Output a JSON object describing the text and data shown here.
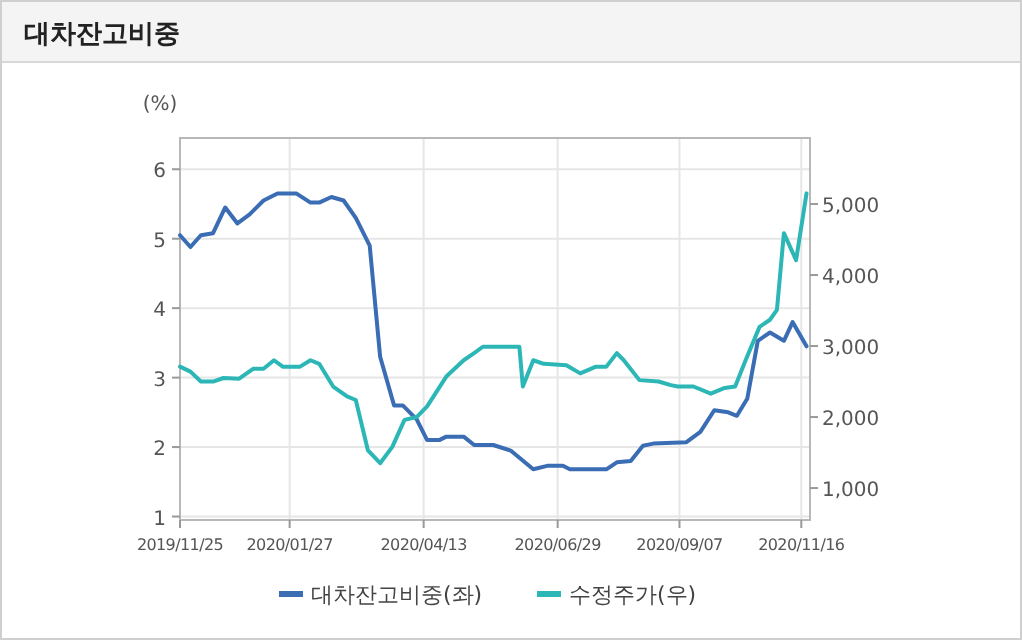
{
  "chart_data": {
    "type": "line",
    "title": "대차잔고비중",
    "ylabel": "(%)",
    "xlim": [
      "2019-11-25",
      "2020-11-21"
    ],
    "xticks": [
      {
        "value": "2019-11-25",
        "label": "2019/11/25"
      },
      {
        "value": "2020-01-27",
        "label": "2020/01/27"
      },
      {
        "value": "2020-04-13",
        "label": "2020/04/13"
      },
      {
        "value": "2020-06-29",
        "label": "2020/06/29"
      },
      {
        "value": "2020-09-07",
        "label": "2020/09/07"
      },
      {
        "value": "2020-11-16",
        "label": "2020/11/16"
      }
    ],
    "ylim": [
      0.95,
      6.45
    ],
    "yticks": [
      1,
      2,
      3,
      4,
      5,
      6
    ],
    "y2lim": [
      550,
      5930
    ],
    "y2ticks": [
      {
        "value": 1000,
        "label": "1,000"
      },
      {
        "value": 2000,
        "label": "2,000"
      },
      {
        "value": 3000,
        "label": "3,000"
      },
      {
        "value": 4000,
        "label": "4,000"
      },
      {
        "value": 5000,
        "label": "5,000"
      }
    ],
    "grid": true,
    "legend": "bottom",
    "marker": "none",
    "line_style": "solid",
    "series": [
      {
        "name": "대차잔고비중(좌)",
        "color": "#3a6db3",
        "x": [
          "2019-11-25",
          "2019-12-01",
          "2019-12-07",
          "2019-12-14",
          "2019-12-21",
          "2019-12-28",
          "2020-01-04",
          "2020-01-12",
          "2020-01-20",
          "2020-01-31",
          "2020-02-08",
          "2020-02-13",
          "2020-02-20",
          "2020-02-27",
          "2020-03-05",
          "2020-03-13",
          "2020-03-19",
          "2020-03-27",
          "2020-04-01",
          "2020-04-09",
          "2020-04-15",
          "2020-04-22",
          "2020-04-26",
          "2020-05-06",
          "2020-05-12",
          "2020-05-23",
          "2020-06-02",
          "2020-06-15",
          "2020-06-23",
          "2020-07-02",
          "2020-07-06",
          "2020-07-27",
          "2020-08-02",
          "2020-08-10",
          "2020-08-17",
          "2020-08-23",
          "2020-09-11",
          "2020-09-19",
          "2020-09-27",
          "2020-10-05",
          "2020-10-10",
          "2020-10-16",
          "2020-10-22",
          "2020-10-29",
          "2020-11-06",
          "2020-11-11",
          "2020-11-19"
        ],
        "values": [
          5.05,
          4.88,
          5.05,
          5.08,
          5.45,
          5.22,
          5.35,
          5.55,
          5.65,
          5.65,
          5.52,
          5.52,
          5.6,
          5.55,
          5.3,
          4.9,
          3.3,
          2.6,
          2.6,
          2.4,
          2.1,
          2.1,
          2.15,
          2.15,
          2.03,
          2.03,
          1.95,
          1.68,
          1.73,
          1.73,
          1.68,
          1.68,
          1.78,
          1.8,
          2.02,
          2.05,
          2.07,
          2.22,
          2.53,
          2.5,
          2.45,
          2.7,
          3.53,
          3.65,
          3.53,
          3.8,
          3.45
        ]
      },
      {
        "name": "수정주가(우)",
        "color": "#2cb6b6",
        "axis": "y2",
        "x": [
          "2019-11-25",
          "2019-12-01",
          "2019-12-07",
          "2019-12-14",
          "2019-12-20",
          "2019-12-29",
          "2020-01-06",
          "2020-01-12",
          "2020-01-18",
          "2020-01-23",
          "2020-02-02",
          "2020-02-08",
          "2020-02-13",
          "2020-02-21",
          "2020-02-29",
          "2020-03-05",
          "2020-03-12",
          "2020-03-19",
          "2020-03-26",
          "2020-04-02",
          "2020-04-09",
          "2020-04-15",
          "2020-04-26",
          "2020-05-06",
          "2020-05-12",
          "2020-05-17",
          "2020-05-31",
          "2020-06-07",
          "2020-06-09",
          "2020-06-15",
          "2020-06-21",
          "2020-07-04",
          "2020-07-12",
          "2020-07-21",
          "2020-07-27",
          "2020-08-02",
          "2020-08-06",
          "2020-08-15",
          "2020-08-26",
          "2020-09-02",
          "2020-09-06",
          "2020-09-15",
          "2020-09-25",
          "2020-10-03",
          "2020-10-09",
          "2020-10-15",
          "2020-10-23",
          "2020-10-29",
          "2020-11-02",
          "2020-11-06",
          "2020-11-13",
          "2020-11-19"
        ],
        "values": [
          2710,
          2640,
          2500,
          2500,
          2550,
          2540,
          2680,
          2680,
          2800,
          2710,
          2710,
          2800,
          2750,
          2430,
          2290,
          2240,
          1530,
          1350,
          1580,
          1960,
          2000,
          2150,
          2570,
          2800,
          2900,
          2990,
          2990,
          2990,
          2430,
          2800,
          2750,
          2730,
          2615,
          2710,
          2710,
          2900,
          2800,
          2520,
          2500,
          2450,
          2430,
          2430,
          2330,
          2410,
          2430,
          2800,
          3270,
          3370,
          3510,
          4590,
          4210,
          5150
        ]
      }
    ]
  }
}
